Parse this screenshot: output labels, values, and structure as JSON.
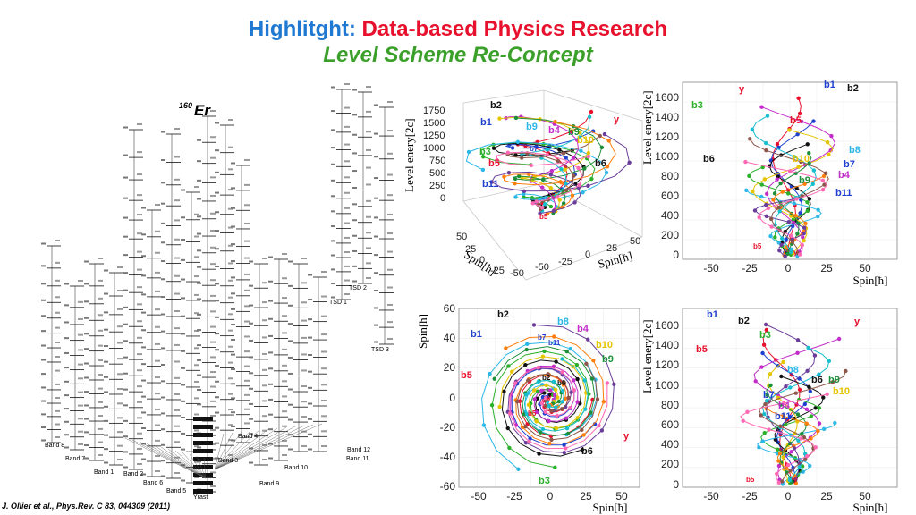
{
  "header": {
    "title_prefix": "Highlitght:",
    "title_main": "Data-based Physics Research",
    "subtitle": "Level Scheme Re-Concept"
  },
  "level_scheme": {
    "nucleus_mass": "160",
    "nucleus_symbol": "Er",
    "band_labels": [
      "Band 8",
      "Band 7",
      "Band 1",
      "Band 2",
      "Band 6",
      "Band 5",
      "Yrast",
      "Band 3",
      "Band 4",
      "Band 9",
      "Band 10",
      "Band 11",
      "Band 12",
      "TSD 1",
      "TSD 2",
      "TSD 3"
    ]
  },
  "reference": "J. Ollier et al., Phys.Rev. C 83, 044309 (2011)",
  "plots": {
    "plot3d": {
      "zlabel": "Level enery[2c]",
      "xlabel": "Spin[ħ]",
      "ylabel": "Spin[ħ]",
      "zticks": [
        "1750",
        "1500",
        "1250",
        "1000",
        "750",
        "500",
        "250",
        "0"
      ],
      "xticks": [
        "-50",
        "-25",
        "0",
        "25",
        "50"
      ],
      "yticks": [
        "50",
        "25",
        "0",
        "-25",
        "-50"
      ],
      "labels": [
        "b2",
        "b1",
        "b9",
        "b4",
        "b9",
        "y",
        "b7",
        "b10",
        "b3",
        "b5",
        "b6",
        "b11",
        "b5"
      ]
    },
    "top_right": {
      "ylabel": "Level enery[2c]",
      "xlabel": "Spin[ħ]",
      "yticks": [
        "1600",
        "1400",
        "1200",
        "1000",
        "800",
        "600",
        "400",
        "200",
        "0"
      ],
      "xticks": [
        "-50",
        "-25",
        "0",
        "25",
        "50"
      ],
      "labels": [
        "y",
        "b1",
        "b2",
        "b3",
        "b5",
        "b8",
        "b6",
        "b10",
        "b7",
        "b9",
        "b4",
        "b11",
        "b5",
        "y"
      ]
    },
    "bottom_middle": {
      "ylabel": "Spin[ħ]",
      "xlabel": "Spin[ħ]",
      "yticks": [
        "60",
        "40",
        "20",
        "0",
        "-20",
        "-40",
        "-60"
      ],
      "xticks": [
        "-50",
        "-25",
        "0",
        "25",
        "50"
      ],
      "labels": [
        "b2",
        "b8",
        "b1",
        "b4",
        "b7",
        "b11",
        "b10",
        "b9",
        "b5",
        "y",
        "b6",
        "b3",
        "b2",
        "b6",
        "b5",
        "y"
      ]
    },
    "bottom_right": {
      "ylabel": "Level enery[2c]",
      "xlabel": "Spin[ħ]",
      "yticks": [
        "1600",
        "1400",
        "1200",
        "1000",
        "800",
        "600",
        "400",
        "200",
        "0"
      ],
      "xticks": [
        "-50",
        "-25",
        "0",
        "25",
        "50"
      ],
      "labels": [
        "b1",
        "b2",
        "y",
        "b3",
        "b5",
        "b8",
        "b6",
        "b9",
        "b7",
        "b10",
        "b4",
        "b11",
        "b5",
        "y"
      ]
    }
  },
  "colors": {
    "accent_blue": "#1f78d1",
    "accent_red": "#e8112d",
    "accent_green": "#3aa02a"
  }
}
